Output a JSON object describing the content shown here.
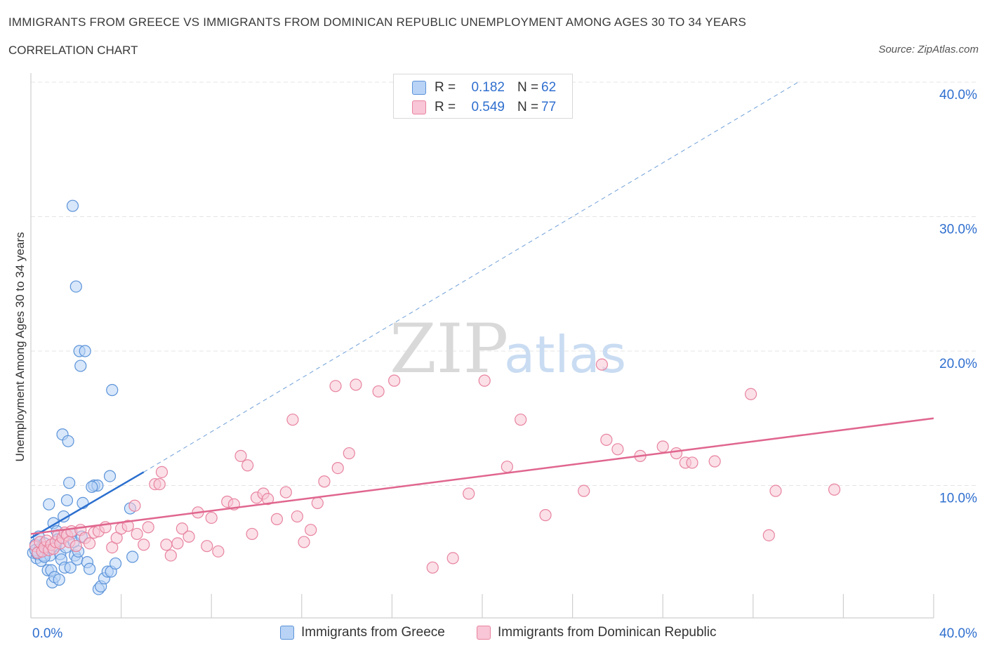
{
  "header": {
    "title": "IMMIGRANTS FROM GREECE VS IMMIGRANTS FROM DOMINICAN REPUBLIC UNEMPLOYMENT AMONG AGES 30 TO 34 YEARS",
    "subtitle": "CORRELATION CHART",
    "source": "Source: ZipAtlas.com"
  },
  "watermark": {
    "zip": "ZIP",
    "atlas": "atlas"
  },
  "legend": {
    "rows": [
      {
        "r_label": "R =",
        "r_value": "0.182",
        "n_label": "N =",
        "n_value": "62"
      },
      {
        "r_label": "R =",
        "r_value": "0.549",
        "n_label": "N =",
        "n_value": "77"
      }
    ]
  },
  "bottom_legend": {
    "greece": "Immigrants from Greece",
    "dominican": "Immigrants from Dominican Republic"
  },
  "colors": {
    "greece_fill": "#b8d3f5",
    "greece_stroke": "#5b93d9",
    "greece_line": "#2b6fcf",
    "dominican_fill": "#f8c6d6",
    "dominican_stroke": "#e8839f",
    "dominican_line": "#e0668e",
    "tick_label": "#2f6fcf",
    "grid": "#e4e4e4"
  },
  "chart_data": {
    "type": "scatter",
    "title": "IMMIGRANTS FROM GREECE VS IMMIGRANTS FROM DOMINICAN REPUBLIC UNEMPLOYMENT AMONG AGES 30 TO 34 YEARS",
    "xlabel": "",
    "ylabel": "Unemployment Among Ages 30 to 34 years",
    "xlim": [
      0,
      40
    ],
    "ylim": [
      0,
      40
    ],
    "x_tick_labels": {
      "left": "0.0%",
      "right": "40.0%"
    },
    "y_ticks": [
      {
        "value": 10,
        "label": "10.0%"
      },
      {
        "value": 20,
        "label": "20.0%"
      },
      {
        "value": 30,
        "label": "30.0%"
      },
      {
        "value": 40,
        "label": "40.0%"
      }
    ],
    "series": [
      {
        "name": "Immigrants from Greece",
        "R": 0.182,
        "N": 62,
        "trend": {
          "x0": 0,
          "y0": 6.1,
          "x1": 5.0,
          "y1": 11.0
        },
        "trend_extension": {
          "x0": 5.0,
          "y0": 11.0,
          "x1": 34.0,
          "y1": 40.0
        },
        "points": [
          [
            0.1,
            5.0
          ],
          [
            0.2,
            5.6
          ],
          [
            0.25,
            4.6
          ],
          [
            0.3,
            4.9
          ],
          [
            0.35,
            6.2
          ],
          [
            0.4,
            5.3
          ],
          [
            0.45,
            4.4
          ],
          [
            0.5,
            5.1
          ],
          [
            0.55,
            4.8
          ],
          [
            0.6,
            5.7
          ],
          [
            0.7,
            5.2
          ],
          [
            0.75,
            3.7
          ],
          [
            0.8,
            8.6
          ],
          [
            0.85,
            4.8
          ],
          [
            0.9,
            3.7
          ],
          [
            0.95,
            2.8
          ],
          [
            1.0,
            7.2
          ],
          [
            1.05,
            3.2
          ],
          [
            1.1,
            5.5
          ],
          [
            1.15,
            6.6
          ],
          [
            1.2,
            6.0
          ],
          [
            1.25,
            3.0
          ],
          [
            1.3,
            4.9
          ],
          [
            1.35,
            4.5
          ],
          [
            1.4,
            13.8
          ],
          [
            1.45,
            7.7
          ],
          [
            1.5,
            3.9
          ],
          [
            1.55,
            5.4
          ],
          [
            1.6,
            8.9
          ],
          [
            1.65,
            13.3
          ],
          [
            1.7,
            10.2
          ],
          [
            1.75,
            3.9
          ],
          [
            1.8,
            6.4
          ],
          [
            1.85,
            30.8
          ],
          [
            1.9,
            5.8
          ],
          [
            1.95,
            4.8
          ],
          [
            2.0,
            24.8
          ],
          [
            2.05,
            4.5
          ],
          [
            2.1,
            5.1
          ],
          [
            2.15,
            20.0
          ],
          [
            2.2,
            18.9
          ],
          [
            2.25,
            6.2
          ],
          [
            2.3,
            8.7
          ],
          [
            2.4,
            20.0
          ],
          [
            2.5,
            4.3
          ],
          [
            2.6,
            3.8
          ],
          [
            2.8,
            10.0
          ],
          [
            2.95,
            10.0
          ],
          [
            3.0,
            2.3
          ],
          [
            3.1,
            2.5
          ],
          [
            3.25,
            3.1
          ],
          [
            3.4,
            3.6
          ],
          [
            3.5,
            10.7
          ],
          [
            3.55,
            3.6
          ],
          [
            3.6,
            17.1
          ],
          [
            3.75,
            4.2
          ],
          [
            4.4,
            8.3
          ],
          [
            4.5,
            4.7
          ],
          [
            0.2,
            5.2
          ],
          [
            0.3,
            5.0
          ],
          [
            0.6,
            4.7
          ],
          [
            2.7,
            9.9
          ]
        ]
      },
      {
        "name": "Immigrants from Dominican Republic",
        "R": 0.549,
        "N": 77,
        "trend": {
          "x0": 0,
          "y0": 6.4,
          "x1": 40,
          "y1": 15.0
        },
        "points": [
          [
            0.2,
            5.5
          ],
          [
            0.3,
            5.0
          ],
          [
            0.4,
            5.8
          ],
          [
            0.5,
            5.1
          ],
          [
            0.6,
            5.4
          ],
          [
            0.7,
            5.9
          ],
          [
            0.8,
            5.2
          ],
          [
            0.9,
            5.6
          ],
          [
            1.0,
            5.3
          ],
          [
            1.1,
            5.8
          ],
          [
            1.2,
            6.3
          ],
          [
            1.3,
            5.7
          ],
          [
            1.4,
            6.1
          ],
          [
            1.5,
            6.5
          ],
          [
            1.6,
            6.3
          ],
          [
            1.7,
            5.8
          ],
          [
            1.8,
            6.6
          ],
          [
            2.0,
            5.5
          ],
          [
            2.2,
            6.7
          ],
          [
            2.4,
            6.1
          ],
          [
            2.6,
            5.7
          ],
          [
            2.8,
            6.5
          ],
          [
            3.0,
            6.6
          ],
          [
            3.3,
            6.9
          ],
          [
            3.6,
            5.4
          ],
          [
            3.8,
            6.1
          ],
          [
            4.0,
            6.8
          ],
          [
            4.3,
            7.0
          ],
          [
            4.6,
            8.5
          ],
          [
            4.7,
            6.4
          ],
          [
            5.0,
            5.6
          ],
          [
            5.2,
            6.9
          ],
          [
            5.5,
            10.1
          ],
          [
            5.7,
            10.1
          ],
          [
            5.8,
            11.0
          ],
          [
            6.0,
            5.6
          ],
          [
            6.2,
            4.8
          ],
          [
            6.5,
            5.7
          ],
          [
            6.7,
            6.8
          ],
          [
            7.0,
            6.2
          ],
          [
            7.4,
            8.0
          ],
          [
            7.8,
            5.5
          ],
          [
            8.0,
            7.6
          ],
          [
            8.3,
            5.1
          ],
          [
            8.7,
            8.8
          ],
          [
            9.0,
            8.6
          ],
          [
            9.3,
            12.2
          ],
          [
            9.6,
            11.5
          ],
          [
            9.8,
            6.4
          ],
          [
            10.0,
            9.1
          ],
          [
            10.3,
            9.4
          ],
          [
            10.5,
            9.0
          ],
          [
            10.9,
            7.5
          ],
          [
            11.3,
            9.5
          ],
          [
            11.6,
            14.9
          ],
          [
            11.8,
            7.7
          ],
          [
            12.1,
            5.8
          ],
          [
            12.4,
            6.7
          ],
          [
            12.7,
            8.7
          ],
          [
            13.0,
            10.3
          ],
          [
            13.5,
            17.4
          ],
          [
            13.6,
            11.3
          ],
          [
            14.1,
            12.4
          ],
          [
            14.4,
            17.5
          ],
          [
            15.4,
            17.0
          ],
          [
            16.1,
            17.8
          ],
          [
            17.8,
            3.9
          ],
          [
            18.7,
            4.6
          ],
          [
            19.4,
            9.4
          ],
          [
            20.1,
            17.8
          ],
          [
            21.1,
            11.4
          ],
          [
            21.7,
            14.9
          ],
          [
            22.8,
            7.8
          ],
          [
            24.5,
            9.6
          ],
          [
            25.5,
            13.4
          ],
          [
            26.0,
            12.7
          ],
          [
            31.9,
            16.8
          ]
        ]
      }
    ],
    "extra_points_dominican": [
      [
        25.3,
        19.0
      ],
      [
        27.0,
        12.2
      ],
      [
        28.0,
        12.9
      ],
      [
        28.6,
        12.4
      ],
      [
        29.0,
        11.7
      ],
      [
        29.3,
        11.7
      ],
      [
        30.3,
        11.8
      ],
      [
        33.0,
        9.6
      ],
      [
        32.7,
        6.3
      ],
      [
        35.6,
        9.7
      ]
    ]
  }
}
